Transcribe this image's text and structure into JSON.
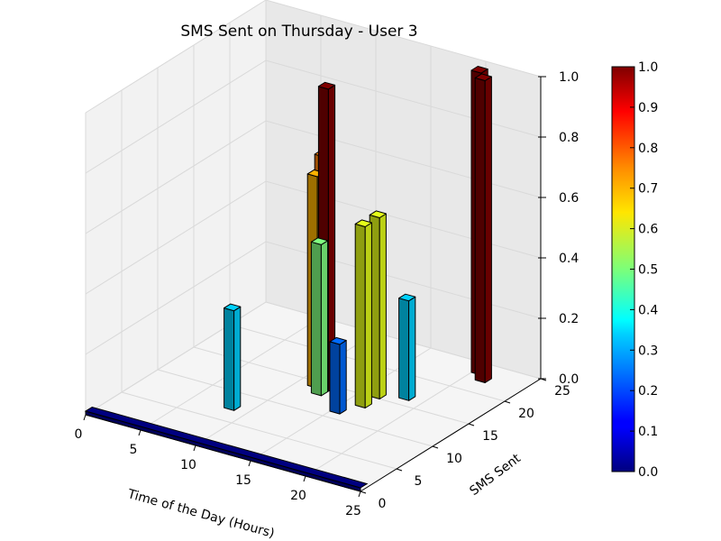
{
  "chart_data": {
    "type": "bar3d",
    "title": "SMS Sent on Thursday - User 3",
    "xlabel": "Time of the Day (Hours)",
    "ylabel": "SMS Sent",
    "zlabel": "",
    "xlim": [
      0,
      25
    ],
    "ylim": [
      0,
      25
    ],
    "zlim": [
      0,
      1.0
    ],
    "grid": true,
    "x_ticks": [
      "0",
      "5",
      "10",
      "15",
      "20",
      "25"
    ],
    "y_ticks": [
      "0",
      "5",
      "10",
      "15",
      "20",
      "25"
    ],
    "z_ticks": [
      "0.0",
      "0.2",
      "0.4",
      "0.6",
      "0.8",
      "1.0"
    ],
    "bars": [
      {
        "x": 8,
        "y": 7,
        "z": 0.33
      },
      {
        "x": 11,
        "y": 14,
        "z": 0.7
      },
      {
        "x": 11,
        "y": 15,
        "z": 0.75
      },
      {
        "x": 12,
        "y": 14,
        "z": 1.0
      },
      {
        "x": 12,
        "y": 13,
        "z": 0.5
      },
      {
        "x": 15,
        "y": 11,
        "z": 0.23
      },
      {
        "x": 16,
        "y": 15,
        "z": 0.6
      },
      {
        "x": 16,
        "y": 13,
        "z": 0.6
      },
      {
        "x": 18,
        "y": 16,
        "z": 0.33
      },
      {
        "x": 20,
        "y": 23,
        "z": 1.0
      },
      {
        "x": 21,
        "y": 22,
        "z": 1.0
      }
    ],
    "baseline_row": {
      "y": 0,
      "x_range": [
        0,
        25
      ],
      "z": 0.0
    },
    "colorbar": {
      "colormap": "jet",
      "range": [
        0.0,
        1.0
      ],
      "ticks": [
        "0.0",
        "0.1",
        "0.2",
        "0.3",
        "0.4",
        "0.5",
        "0.6",
        "0.7",
        "0.8",
        "0.9",
        "1.0"
      ]
    }
  }
}
